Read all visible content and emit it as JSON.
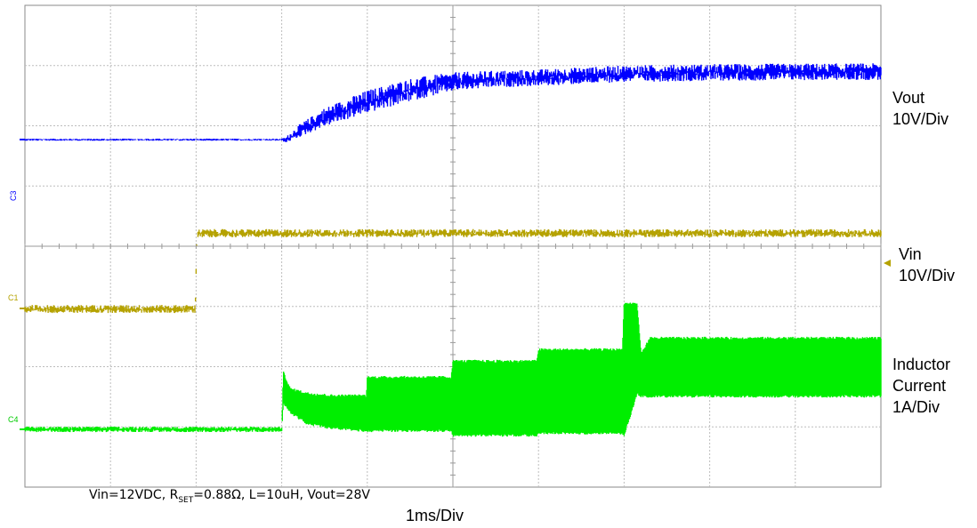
{
  "chart_data": {
    "type": "line",
    "x_unit": "ms",
    "xlim": [
      0,
      10
    ],
    "grid": true,
    "divisions": {
      "x": 10,
      "y": 8
    },
    "timebase": "1ms/Div",
    "conditions": {
      "vin": "Vin=12VDC, R",
      "rset_sub": "SET",
      "rest": "=0.88Ω, L=10uH, Vout=28V"
    },
    "series": [
      {
        "key": "vout",
        "channel_tag": "C3",
        "label_line1": "Vout",
        "label_line2": "10V/Div",
        "color": "#0000ff",
        "x": [
          0,
          2.0,
          3.0,
          3.05,
          3.2,
          3.5,
          4.0,
          4.5,
          5.0,
          5.5,
          6.0,
          7.0,
          8.0,
          9.0,
          10.0
        ],
        "y": [
          0,
          0,
          0,
          0.05,
          3.5,
          9.0,
          15.0,
          19.5,
          22.5,
          23.5,
          24.0,
          25.5,
          26.0,
          26.2,
          26.3
        ],
        "noise": [
          0.5,
          0.5,
          0.5,
          1.5,
          3.0,
          4.5,
          5.5,
          5.5,
          4.5,
          4.0,
          4.0,
          4.0,
          4.0,
          4.0,
          4.0
        ]
      },
      {
        "key": "vin",
        "channel_tag": "C1",
        "label_line1": "Vin",
        "label_line2": "10V/Div",
        "color": "#b5a200",
        "x": [
          0,
          1.99,
          2.01,
          10.0
        ],
        "y": [
          0,
          0,
          12.0,
          12.0
        ],
        "noise": [
          0.8,
          0.8,
          0.8,
          0.8
        ]
      },
      {
        "key": "il",
        "channel_tag": "C4",
        "label_line1": "Inductor",
        "label_line2": "Current",
        "label_line3": "1A/Div",
        "color": "#00ee00",
        "x": [
          0,
          3.0,
          3.02,
          3.1,
          3.3,
          3.6,
          3.99,
          4.0,
          4.98,
          5.0,
          5.98,
          6.0,
          6.98,
          7.0,
          7.15,
          7.2,
          7.3,
          10.0
        ],
        "y_upper": [
          0,
          0,
          1.2,
          0.85,
          0.75,
          0.7,
          0.7,
          1.1,
          1.1,
          1.45,
          1.45,
          1.7,
          1.7,
          2.7,
          2.7,
          1.6,
          1.95,
          1.95
        ],
        "y_lower": [
          0,
          0,
          0.6,
          0.4,
          0.15,
          0.05,
          0.0,
          0.0,
          0.0,
          -0.1,
          -0.1,
          -0.05,
          -0.05,
          -0.1,
          0.8,
          0.75,
          0.75,
          0.75
        ]
      }
    ]
  }
}
